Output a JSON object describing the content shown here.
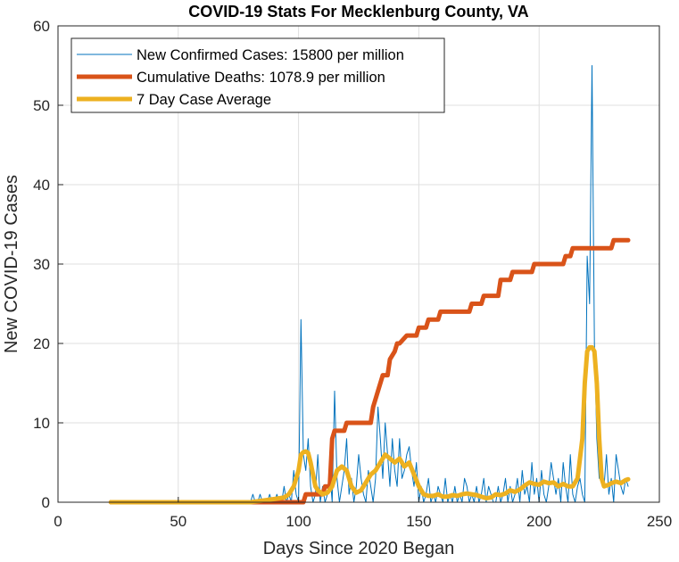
{
  "chart_data": {
    "type": "line",
    "title": "COVID-19 Stats For Mecklenburg County, VA",
    "xlabel": "Days Since 2020 Began",
    "ylabel": "New COVID-19 Cases",
    "xlim": [
      0,
      250
    ],
    "ylim": [
      0,
      60
    ],
    "xticks": [
      0,
      50,
      100,
      150,
      200,
      250
    ],
    "yticks": [
      0,
      10,
      20,
      30,
      40,
      50,
      60
    ],
    "grid": true,
    "legend_position": "top-left",
    "series": [
      {
        "name": "New Confirmed Cases: 15800 per million",
        "color": "#0072BD",
        "style": "thin",
        "x": [
          22,
          30,
          40,
          50,
          60,
          70,
          80,
          81,
          82,
          83,
          84,
          85,
          86,
          87,
          88,
          89,
          90,
          91,
          92,
          93,
          94,
          95,
          96,
          97,
          98,
          99,
          100,
          101,
          102,
          103,
          104,
          105,
          106,
          107,
          108,
          109,
          110,
          111,
          112,
          113,
          114,
          115,
          116,
          117,
          118,
          119,
          120,
          121,
          122,
          123,
          124,
          125,
          126,
          127,
          128,
          129,
          130,
          131,
          132,
          133,
          134,
          135,
          136,
          137,
          138,
          139,
          140,
          141,
          142,
          143,
          144,
          145,
          146,
          147,
          148,
          149,
          150,
          151,
          152,
          153,
          154,
          155,
          156,
          157,
          158,
          159,
          160,
          161,
          162,
          163,
          164,
          165,
          166,
          167,
          168,
          169,
          170,
          171,
          172,
          173,
          174,
          175,
          176,
          177,
          178,
          179,
          180,
          181,
          182,
          183,
          184,
          185,
          186,
          187,
          188,
          189,
          190,
          191,
          192,
          193,
          194,
          195,
          196,
          197,
          198,
          199,
          200,
          201,
          202,
          203,
          204,
          205,
          206,
          207,
          208,
          209,
          210,
          211,
          212,
          213,
          214,
          215,
          216,
          217,
          218,
          219,
          220,
          221,
          222,
          223,
          224,
          225,
          226,
          227,
          228,
          229,
          230,
          231,
          232,
          233,
          234,
          235,
          236,
          237
        ],
        "y": [
          0,
          0,
          0,
          0,
          0,
          0,
          0,
          1,
          0,
          0,
          1,
          0,
          0,
          0,
          1,
          0,
          0,
          1,
          0,
          0,
          2,
          0,
          1,
          0,
          4,
          1,
          0,
          23,
          6,
          4,
          8,
          2,
          0,
          1,
          6,
          0,
          2,
          0,
          1,
          4,
          0,
          14,
          3,
          0,
          2,
          4,
          8,
          1,
          3,
          0,
          2,
          6,
          3,
          1,
          0,
          4,
          2,
          0,
          3,
          12,
          8,
          3,
          10,
          6,
          2,
          8,
          4,
          2,
          8,
          3,
          4,
          6,
          7,
          4,
          2,
          5,
          0,
          2,
          0,
          1,
          3,
          0,
          1,
          0,
          2,
          1,
          0,
          3,
          0,
          1,
          0,
          2,
          0,
          1,
          0,
          3,
          2,
          0,
          1,
          0,
          2,
          0,
          1,
          3,
          0,
          2,
          1,
          0,
          0,
          2,
          0,
          1,
          3,
          0,
          2,
          0,
          1,
          3,
          0,
          4,
          1,
          2,
          0,
          5,
          1,
          3,
          0,
          4,
          1,
          0,
          2,
          5,
          3,
          1,
          3,
          0,
          5,
          2,
          0,
          6,
          1,
          0,
          2,
          3,
          1,
          0,
          31,
          25,
          55,
          20,
          8,
          3,
          5,
          2,
          6,
          1,
          3,
          0,
          6,
          4,
          2,
          1,
          3,
          2
        ]
      },
      {
        "name": "Cumulative Deaths: 1078.9 per million",
        "color": "#D95319",
        "style": "thick",
        "x": [
          22,
          80,
          102,
          103,
          110,
          111,
          113,
          114,
          115,
          119,
          120,
          130,
          131,
          132,
          133,
          134,
          135,
          137,
          138,
          140,
          141,
          142,
          145,
          146,
          149,
          150,
          153,
          154,
          158,
          159,
          171,
          172,
          176,
          177,
          183,
          184,
          188,
          189,
          197,
          198,
          210,
          211,
          213,
          214,
          230,
          231,
          237
        ],
        "y": [
          0,
          0,
          0,
          1,
          1,
          2,
          2,
          8,
          9,
          9,
          10,
          10,
          12,
          13,
          14,
          15,
          16,
          16,
          18,
          19,
          20,
          20,
          21,
          21,
          21,
          22,
          22,
          23,
          23,
          24,
          24,
          25,
          25,
          26,
          26,
          28,
          28,
          29,
          29,
          30,
          30,
          31,
          31,
          32,
          32,
          33,
          33
        ]
      },
      {
        "name": "7 Day Case Average",
        "color": "#EDB120",
        "style": "thick",
        "x": [
          22,
          80,
          85,
          90,
          94,
          96,
          98,
          100,
          101,
          102,
          103,
          104,
          105,
          106,
          107,
          108,
          110,
          112,
          114,
          116,
          118,
          120,
          122,
          124,
          126,
          128,
          130,
          132,
          134,
          136,
          138,
          140,
          142,
          144,
          146,
          148,
          150,
          152,
          154,
          156,
          158,
          160,
          162,
          164,
          166,
          168,
          170,
          172,
          174,
          176,
          178,
          180,
          182,
          184,
          186,
          188,
          190,
          192,
          194,
          196,
          198,
          200,
          202,
          204,
          206,
          208,
          210,
          212,
          214,
          216,
          218,
          219,
          220,
          221,
          222,
          223,
          224,
          225,
          226,
          227,
          228,
          229,
          230,
          232,
          234,
          236,
          237
        ],
        "y": [
          0,
          0,
          0.2,
          0.4,
          0.6,
          1,
          2,
          4,
          6,
          6.3,
          6.4,
          6.2,
          5,
          3.5,
          2,
          1.5,
          1,
          1.2,
          2,
          4,
          4.5,
          4,
          2,
          1.2,
          1.5,
          2.5,
          3.5,
          4,
          5,
          6,
          5.5,
          5,
          5.5,
          4.5,
          5,
          3.5,
          2,
          1,
          0.8,
          0.8,
          1,
          0.7,
          0.7,
          0.9,
          0.8,
          1,
          1.1,
          1,
          0.9,
          0.7,
          0.5,
          0.6,
          1,
          0.9,
          1.1,
          1.5,
          1.3,
          1.6,
          2.1,
          2.5,
          2.3,
          2.2,
          2.6,
          2.4,
          2.5,
          2,
          2.3,
          2,
          2,
          3,
          8,
          15,
          19,
          19.5,
          19.5,
          19,
          15,
          8,
          3,
          2,
          2.1,
          2.2,
          2.4,
          2.6,
          2.4,
          2.8,
          2.9
        ]
      }
    ]
  }
}
